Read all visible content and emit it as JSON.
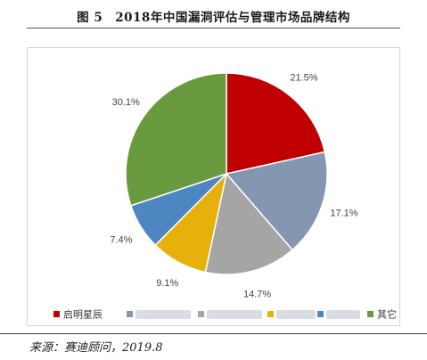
{
  "figure": {
    "title": "图 5　2018年中国漏洞评估与管理市场品牌结构",
    "source": "来源：赛迪顾问，2019.8"
  },
  "chart_data": {
    "type": "pie",
    "title": "",
    "slices": [
      {
        "name": "启明星辰",
        "value": 21.5,
        "label": "21.5%",
        "color": "#c00000"
      },
      {
        "name": "",
        "value": 17.1,
        "label": "17.1%",
        "color": "#8497b0"
      },
      {
        "name": "",
        "value": 14.7,
        "label": "14.7%",
        "color": "#a5a5a5"
      },
      {
        "name": "",
        "value": 9.1,
        "label": "9.1%",
        "color": "#e6b10b"
      },
      {
        "name": "",
        "value": 7.4,
        "label": "7.4%",
        "color": "#4e86c2"
      },
      {
        "name": "其它",
        "value": 30.1,
        "label": "30.1%",
        "color": "#6a9a3e"
      }
    ],
    "legend_position": "bottom",
    "start_angle": "12 o'clock",
    "direction": "clockwise"
  }
}
